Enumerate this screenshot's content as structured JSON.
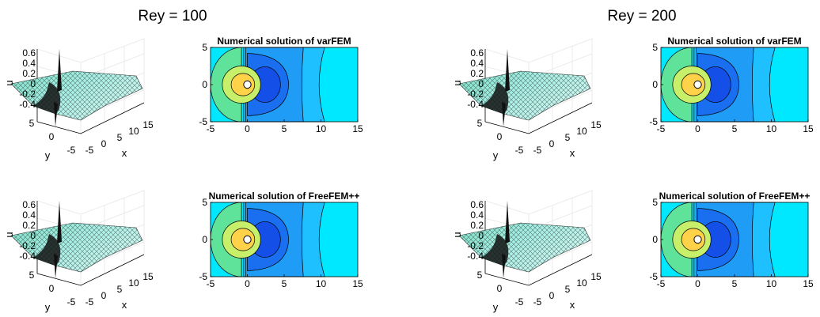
{
  "figure": {
    "groups": [
      {
        "title": "Rey = 100",
        "rows": [
          {
            "surface_zlabel": "u",
            "surface_xlabel": "x",
            "surface_ylabel": "y",
            "contour_title": "Numerical solution of varFEM"
          },
          {
            "surface_zlabel": "u",
            "surface_xlabel": "x",
            "surface_ylabel": "y",
            "contour_title": "Numerical solution of FreeFEM++"
          }
        ]
      },
      {
        "title": "Rey = 200",
        "rows": [
          {
            "surface_zlabel": "u",
            "surface_xlabel": "x",
            "surface_ylabel": "y",
            "contour_title": "Numerical solution of varFEM"
          },
          {
            "surface_zlabel": "u",
            "surface_xlabel": "x",
            "surface_ylabel": "y",
            "contour_title": "Numerical solution of FreeFEM++"
          }
        ]
      }
    ]
  },
  "chart_data": [
    {
      "type": "heatmap",
      "subtype": "3d-surface",
      "panel": "Rey = 100 surface (varFEM row)",
      "zlabel": "u",
      "xlabel": "x",
      "ylabel": "y",
      "zlim": [
        -0.4,
        0.6
      ],
      "xlim": [
        -5,
        15
      ],
      "ylim": [
        -5,
        5
      ],
      "z_ticks": [
        0.6,
        0.4,
        0.2,
        0,
        -0.2,
        -0.4
      ],
      "x_ticks": [
        -5,
        0,
        5,
        10,
        15
      ],
      "y_ticks": [
        5,
        0,
        -5
      ]
    },
    {
      "type": "heatmap",
      "subtype": "contour",
      "title": "Numerical solution of varFEM",
      "xlim": [
        -5,
        15
      ],
      "ylim": [
        -5,
        5
      ],
      "x_ticks": [
        -5,
        0,
        5,
        10,
        15
      ],
      "y_ticks": [
        5,
        0,
        -5
      ],
      "obstacle": {
        "shape": "circle",
        "x": 0,
        "y": 0,
        "r": 0.5
      }
    },
    {
      "type": "heatmap",
      "subtype": "3d-surface",
      "panel": "Rey = 100 surface (FreeFEM++ row)",
      "zlabel": "u",
      "xlabel": "x",
      "ylabel": "y",
      "zlim": [
        -0.4,
        0.6
      ],
      "xlim": [
        -5,
        15
      ],
      "ylim": [
        -5,
        5
      ],
      "z_ticks": [
        0.6,
        0.4,
        0.2,
        0,
        -0.2,
        -0.4
      ],
      "x_ticks": [
        -5,
        0,
        5,
        10,
        15
      ],
      "y_ticks": [
        5,
        0,
        -5
      ]
    },
    {
      "type": "heatmap",
      "subtype": "contour",
      "title": "Numerical solution of FreeFEM++",
      "xlim": [
        -5,
        15
      ],
      "ylim": [
        -5,
        5
      ],
      "x_ticks": [
        -5,
        0,
        5,
        10,
        15
      ],
      "y_ticks": [
        5,
        0,
        -5
      ],
      "obstacle": {
        "shape": "circle",
        "x": 0,
        "y": 0,
        "r": 0.5
      }
    },
    {
      "type": "heatmap",
      "subtype": "3d-surface",
      "panel": "Rey = 200 surface (varFEM row)",
      "zlabel": "u",
      "xlabel": "x",
      "ylabel": "y",
      "zlim": [
        -0.4,
        0.6
      ],
      "xlim": [
        -5,
        15
      ],
      "ylim": [
        -5,
        5
      ],
      "z_ticks": [
        0.6,
        0.4,
        0.2,
        0,
        -0.2,
        -0.4
      ],
      "x_ticks": [
        -5,
        0,
        5,
        10,
        15
      ],
      "y_ticks": [
        5,
        0,
        -5
      ]
    },
    {
      "type": "heatmap",
      "subtype": "contour",
      "title": "Numerical solution of varFEM",
      "xlim": [
        -5,
        15
      ],
      "ylim": [
        -5,
        5
      ],
      "x_ticks": [
        -5,
        0,
        5,
        10,
        15
      ],
      "y_ticks": [
        5,
        0,
        -5
      ],
      "obstacle": {
        "shape": "circle",
        "x": 0,
        "y": 0,
        "r": 0.5
      }
    },
    {
      "type": "heatmap",
      "subtype": "3d-surface",
      "panel": "Rey = 200 surface (FreeFEM++ row)",
      "zlabel": "u",
      "xlabel": "x",
      "ylabel": "y",
      "zlim": [
        -0.4,
        0.6
      ],
      "xlim": [
        -5,
        15
      ],
      "ylim": [
        -5,
        5
      ],
      "z_ticks": [
        0.6,
        0.4,
        0.2,
        0,
        -0.2,
        -0.4
      ],
      "x_ticks": [
        -5,
        0,
        5,
        10,
        15
      ],
      "y_ticks": [
        5,
        0,
        -5
      ]
    },
    {
      "type": "heatmap",
      "subtype": "contour",
      "title": "Numerical solution of FreeFEM++",
      "xlim": [
        -5,
        15
      ],
      "ylim": [
        -5,
        5
      ],
      "x_ticks": [
        -5,
        0,
        5,
        10,
        15
      ],
      "y_ticks": [
        5,
        0,
        -5
      ],
      "obstacle": {
        "shape": "circle",
        "x": 0,
        "y": 0,
        "r": 0.5
      }
    }
  ],
  "colors": {
    "far_field": "#00e8ff",
    "band_light": "#1ec0ff",
    "band_mid": "#1f9cf5",
    "band_dark": "#1a6ff0",
    "core": "#1450e8",
    "upstream_green": "#5fe39a",
    "upstream_yellow": "#c8ef6a",
    "hot_ring": "#ffd24a",
    "surface_light": "#a8f0e6",
    "surface_dark": "#121212"
  }
}
